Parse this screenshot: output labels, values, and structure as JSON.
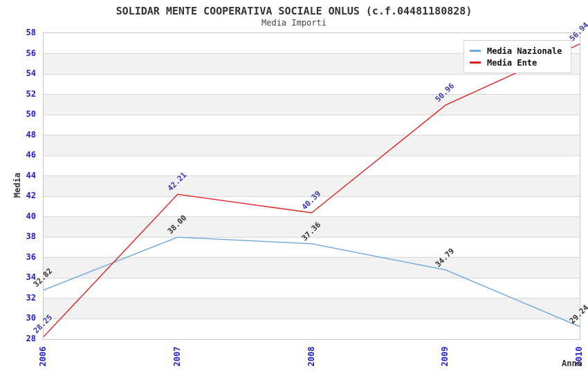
{
  "chart_data": {
    "type": "line",
    "title": "SOLIDAR MENTE COOPERATIVA SOCIALE ONLUS (c.f.04481180828)",
    "subtitle": "Media Importi",
    "xlabel": "Anno",
    "ylabel": "Media",
    "categories": [
      "2006",
      "2007",
      "2008",
      "2009",
      "2010"
    ],
    "ylim": [
      28,
      58
    ],
    "ytick_step": 2,
    "yticks": [
      "58",
      "56",
      "54",
      "52",
      "50",
      "48",
      "46",
      "44",
      "42",
      "40",
      "38",
      "36",
      "34",
      "32",
      "30",
      "28"
    ],
    "grid": "horizontal-alternating-bands",
    "legend_position": "top-right-inside",
    "series": [
      {
        "name": "Media Nazionale",
        "color": "#6fa8dc",
        "label_color": "#333333",
        "values": [
          32.82,
          38.0,
          37.36,
          34.79,
          29.24
        ],
        "labels": [
          "32.82",
          "38.00",
          "37.36",
          "34.79",
          "29.24"
        ]
      },
      {
        "name": "Media Ente",
        "color": "#e02020",
        "label_color": "#3939b3",
        "values": [
          28.25,
          42.21,
          40.39,
          50.96,
          56.94
        ],
        "labels": [
          "28.25",
          "42.21",
          "40.39",
          "50.96",
          "56.94"
        ]
      }
    ]
  },
  "colors": {
    "tick_label": "#2222cc",
    "band_gray": "#f2f2f2",
    "band_white": "#ffffff",
    "gridline": "#dadada",
    "plot_border": "#c8c8c8",
    "title_text": "#333333"
  }
}
